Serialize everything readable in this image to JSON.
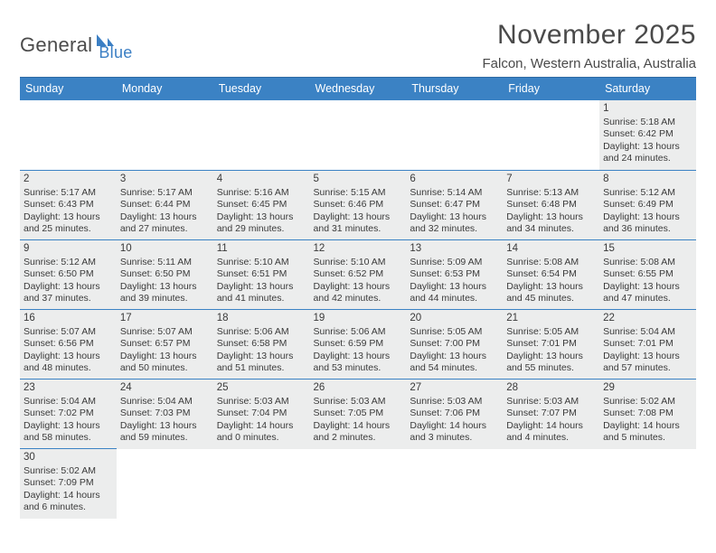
{
  "logo": {
    "word1": "General",
    "word2": "Blue"
  },
  "header": {
    "title": "November 2025",
    "location": "Falcon, Western Australia, Australia"
  },
  "colors": {
    "header_bg": "#3b82c4",
    "header_border": "#2f6aa3",
    "cell_border": "#3b82c4",
    "shaded_bg": "#eceded",
    "text": "#3a3a3a",
    "logo_blue": "#3b7fc4"
  },
  "weekdays": [
    "Sunday",
    "Monday",
    "Tuesday",
    "Wednesday",
    "Thursday",
    "Friday",
    "Saturday"
  ],
  "weeks": [
    [
      null,
      null,
      null,
      null,
      null,
      null,
      {
        "n": "1",
        "rise": "Sunrise: 5:18 AM",
        "set": "Sunset: 6:42 PM",
        "d1": "Daylight: 13 hours",
        "d2": "and 24 minutes."
      }
    ],
    [
      {
        "n": "2",
        "rise": "Sunrise: 5:17 AM",
        "set": "Sunset: 6:43 PM",
        "d1": "Daylight: 13 hours",
        "d2": "and 25 minutes."
      },
      {
        "n": "3",
        "rise": "Sunrise: 5:17 AM",
        "set": "Sunset: 6:44 PM",
        "d1": "Daylight: 13 hours",
        "d2": "and 27 minutes."
      },
      {
        "n": "4",
        "rise": "Sunrise: 5:16 AM",
        "set": "Sunset: 6:45 PM",
        "d1": "Daylight: 13 hours",
        "d2": "and 29 minutes."
      },
      {
        "n": "5",
        "rise": "Sunrise: 5:15 AM",
        "set": "Sunset: 6:46 PM",
        "d1": "Daylight: 13 hours",
        "d2": "and 31 minutes."
      },
      {
        "n": "6",
        "rise": "Sunrise: 5:14 AM",
        "set": "Sunset: 6:47 PM",
        "d1": "Daylight: 13 hours",
        "d2": "and 32 minutes."
      },
      {
        "n": "7",
        "rise": "Sunrise: 5:13 AM",
        "set": "Sunset: 6:48 PM",
        "d1": "Daylight: 13 hours",
        "d2": "and 34 minutes."
      },
      {
        "n": "8",
        "rise": "Sunrise: 5:12 AM",
        "set": "Sunset: 6:49 PM",
        "d1": "Daylight: 13 hours",
        "d2": "and 36 minutes."
      }
    ],
    [
      {
        "n": "9",
        "rise": "Sunrise: 5:12 AM",
        "set": "Sunset: 6:50 PM",
        "d1": "Daylight: 13 hours",
        "d2": "and 37 minutes."
      },
      {
        "n": "10",
        "rise": "Sunrise: 5:11 AM",
        "set": "Sunset: 6:50 PM",
        "d1": "Daylight: 13 hours",
        "d2": "and 39 minutes."
      },
      {
        "n": "11",
        "rise": "Sunrise: 5:10 AM",
        "set": "Sunset: 6:51 PM",
        "d1": "Daylight: 13 hours",
        "d2": "and 41 minutes."
      },
      {
        "n": "12",
        "rise": "Sunrise: 5:10 AM",
        "set": "Sunset: 6:52 PM",
        "d1": "Daylight: 13 hours",
        "d2": "and 42 minutes."
      },
      {
        "n": "13",
        "rise": "Sunrise: 5:09 AM",
        "set": "Sunset: 6:53 PM",
        "d1": "Daylight: 13 hours",
        "d2": "and 44 minutes."
      },
      {
        "n": "14",
        "rise": "Sunrise: 5:08 AM",
        "set": "Sunset: 6:54 PM",
        "d1": "Daylight: 13 hours",
        "d2": "and 45 minutes."
      },
      {
        "n": "15",
        "rise": "Sunrise: 5:08 AM",
        "set": "Sunset: 6:55 PM",
        "d1": "Daylight: 13 hours",
        "d2": "and 47 minutes."
      }
    ],
    [
      {
        "n": "16",
        "rise": "Sunrise: 5:07 AM",
        "set": "Sunset: 6:56 PM",
        "d1": "Daylight: 13 hours",
        "d2": "and 48 minutes."
      },
      {
        "n": "17",
        "rise": "Sunrise: 5:07 AM",
        "set": "Sunset: 6:57 PM",
        "d1": "Daylight: 13 hours",
        "d2": "and 50 minutes."
      },
      {
        "n": "18",
        "rise": "Sunrise: 5:06 AM",
        "set": "Sunset: 6:58 PM",
        "d1": "Daylight: 13 hours",
        "d2": "and 51 minutes."
      },
      {
        "n": "19",
        "rise": "Sunrise: 5:06 AM",
        "set": "Sunset: 6:59 PM",
        "d1": "Daylight: 13 hours",
        "d2": "and 53 minutes."
      },
      {
        "n": "20",
        "rise": "Sunrise: 5:05 AM",
        "set": "Sunset: 7:00 PM",
        "d1": "Daylight: 13 hours",
        "d2": "and 54 minutes."
      },
      {
        "n": "21",
        "rise": "Sunrise: 5:05 AM",
        "set": "Sunset: 7:01 PM",
        "d1": "Daylight: 13 hours",
        "d2": "and 55 minutes."
      },
      {
        "n": "22",
        "rise": "Sunrise: 5:04 AM",
        "set": "Sunset: 7:01 PM",
        "d1": "Daylight: 13 hours",
        "d2": "and 57 minutes."
      }
    ],
    [
      {
        "n": "23",
        "rise": "Sunrise: 5:04 AM",
        "set": "Sunset: 7:02 PM",
        "d1": "Daylight: 13 hours",
        "d2": "and 58 minutes."
      },
      {
        "n": "24",
        "rise": "Sunrise: 5:04 AM",
        "set": "Sunset: 7:03 PM",
        "d1": "Daylight: 13 hours",
        "d2": "and 59 minutes."
      },
      {
        "n": "25",
        "rise": "Sunrise: 5:03 AM",
        "set": "Sunset: 7:04 PM",
        "d1": "Daylight: 14 hours",
        "d2": "and 0 minutes."
      },
      {
        "n": "26",
        "rise": "Sunrise: 5:03 AM",
        "set": "Sunset: 7:05 PM",
        "d1": "Daylight: 14 hours",
        "d2": "and 2 minutes."
      },
      {
        "n": "27",
        "rise": "Sunrise: 5:03 AM",
        "set": "Sunset: 7:06 PM",
        "d1": "Daylight: 14 hours",
        "d2": "and 3 minutes."
      },
      {
        "n": "28",
        "rise": "Sunrise: 5:03 AM",
        "set": "Sunset: 7:07 PM",
        "d1": "Daylight: 14 hours",
        "d2": "and 4 minutes."
      },
      {
        "n": "29",
        "rise": "Sunrise: 5:02 AM",
        "set": "Sunset: 7:08 PM",
        "d1": "Daylight: 14 hours",
        "d2": "and 5 minutes."
      }
    ],
    [
      {
        "n": "30",
        "rise": "Sunrise: 5:02 AM",
        "set": "Sunset: 7:09 PM",
        "d1": "Daylight: 14 hours",
        "d2": "and 6 minutes."
      },
      null,
      null,
      null,
      null,
      null,
      null
    ]
  ]
}
